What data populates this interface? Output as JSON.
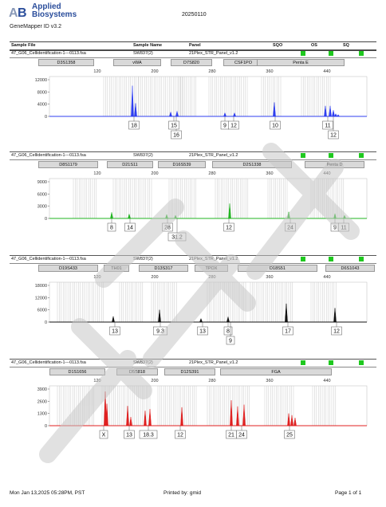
{
  "header": {
    "brand_line1": "Applied",
    "brand_line2": "Biosystems",
    "software": "GeneMapper ID v3.2",
    "date": "20250110"
  },
  "columns": {
    "sample_file": "Sample File",
    "sample_name": "Sample Name",
    "panel": "Panel",
    "sqo": "SQO",
    "os": "OS",
    "sq": "SQ"
  },
  "scale_labels": [
    "120",
    "200",
    "280",
    "360",
    "440",
    "520"
  ],
  "panels": [
    {
      "file": "47_G06_Cellidentification-1---0113.fsa",
      "sample": "SW837(2)",
      "panel": "21Plex_STR_Panel_v1.2",
      "loci": [
        "D3S1358",
        "vWA",
        "D7S820",
        "CSF1PO",
        "Penta E"
      ],
      "y_ticks": [
        "12000",
        "8000",
        "4000",
        "0"
      ],
      "alleles": [
        "18",
        "16",
        "15",
        "9",
        "12",
        "10",
        "11",
        "12"
      ]
    },
    {
      "file": "47_G06_Cellidentification-1---0113.fsa",
      "sample": "SW837(2)",
      "panel": "21Plex_STR_Panel_v1.2",
      "loci": [
        "D8S1179",
        "D21S11",
        "D16S539",
        "D2S1338",
        "Penta D"
      ],
      "y_ticks": [
        "9000",
        "6000",
        "3000",
        "0"
      ],
      "alleles": [
        "8",
        "14",
        "28",
        "31.2",
        "12",
        "24",
        "9",
        "11"
      ]
    },
    {
      "file": "47_G06_Cellidentification-1---0113.fsa",
      "sample": "SW837(2)",
      "panel": "21Plex_STR_Panel_v1.2",
      "loci": [
        "D19S433",
        "TH01",
        "D13S317",
        "TPOX",
        "D18S51",
        "D6S1043"
      ],
      "y_ticks": [
        "18000",
        "12000",
        "6000",
        "0"
      ],
      "alleles": [
        "13",
        "9.3",
        "13",
        "8",
        "9",
        "17",
        "12"
      ]
    },
    {
      "file": "47_G06_Cellidentification-1---0113.fsa",
      "sample": "SW837(2)",
      "panel": "21Plex_STR_Panel_v1.2",
      "loci": [
        "D1S1656",
        "D5S818",
        "D12S391",
        "FGA"
      ],
      "y_ticks": [
        "3900",
        "2600",
        "1300",
        "0"
      ],
      "alleles": [
        "X",
        "13",
        "18.3",
        "12",
        "21",
        "24",
        "25"
      ]
    }
  ],
  "footer": {
    "timestamp": "Mon Jan 13,2025 05:28PM, PST",
    "printed_by": "Printed by: gmid",
    "page": "Page 1 of 1"
  },
  "colors": {
    "blue": "#2f3ff0",
    "green": "#22b522",
    "black": "#111111",
    "red": "#e02020",
    "status_green": "#1fc81f"
  }
}
